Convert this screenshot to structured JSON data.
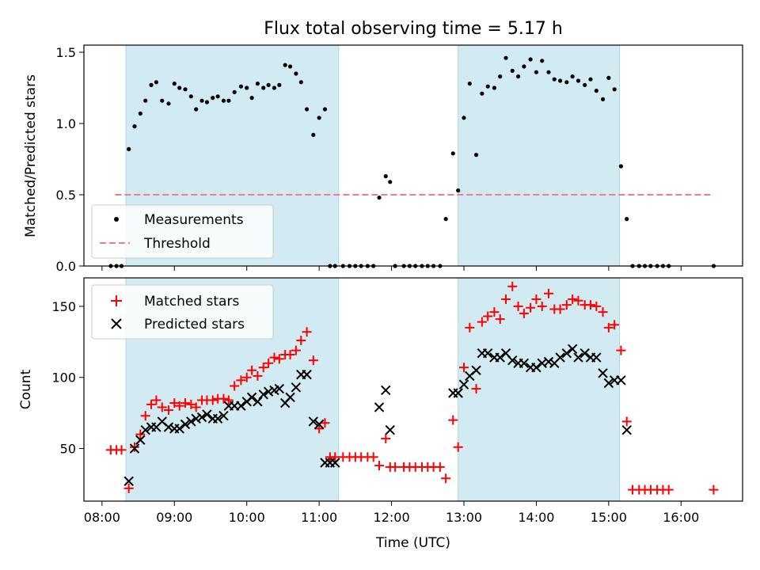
{
  "chart_data": [
    {
      "type": "scatter",
      "title": "Flux total observing time = 5.17 h",
      "xlabel": "",
      "ylabel": "Matched/Predicted stars",
      "ylim": [
        0,
        1.55
      ],
      "yticks": [
        0.0,
        0.5,
        1.0,
        1.5
      ],
      "ytick_labels": [
        "0.0",
        "0.5",
        "1.0",
        "1.5"
      ],
      "legend_position": "lower-left",
      "legend": [
        "Measurements",
        "Threshold"
      ],
      "threshold": {
        "value": 0.5,
        "x_start": 8.18,
        "x_end": 16.45,
        "color": "#f08080"
      },
      "shaded_periods": [
        [
          8.33,
          11.27
        ],
        [
          12.92,
          15.15
        ]
      ],
      "shade_color": "#add8e6",
      "series": [
        {
          "name": "Measurements",
          "color": "#000000",
          "x": [
            8.12,
            8.2,
            8.27,
            8.37,
            8.45,
            8.53,
            8.6,
            8.68,
            8.75,
            8.83,
            8.92,
            9.0,
            9.07,
            9.15,
            9.23,
            9.3,
            9.38,
            9.45,
            9.53,
            9.6,
            9.68,
            9.75,
            9.83,
            9.92,
            10.0,
            10.07,
            10.15,
            10.23,
            10.3,
            10.38,
            10.45,
            10.53,
            10.6,
            10.68,
            10.75,
            10.83,
            10.92,
            11.0,
            11.08,
            11.15,
            11.22,
            11.33,
            11.42,
            11.5,
            11.58,
            11.67,
            11.75,
            11.83,
            11.92,
            11.98,
            12.05,
            12.17,
            12.25,
            12.33,
            12.42,
            12.5,
            12.58,
            12.67,
            12.75,
            12.85,
            12.92,
            13.0,
            13.08,
            13.17,
            13.25,
            13.33,
            13.42,
            13.5,
            13.58,
            13.67,
            13.75,
            13.83,
            13.92,
            14.0,
            14.08,
            14.17,
            14.25,
            14.33,
            14.42,
            14.5,
            14.58,
            14.67,
            14.75,
            14.83,
            14.92,
            15.0,
            15.08,
            15.17,
            15.25,
            15.33,
            15.42,
            15.5,
            15.58,
            15.67,
            15.75,
            15.83,
            16.45
          ],
          "values": [
            0,
            0,
            0,
            0.82,
            0.98,
            1.07,
            1.16,
            1.27,
            1.29,
            1.16,
            1.14,
            1.28,
            1.25,
            1.24,
            1.19,
            1.1,
            1.16,
            1.15,
            1.18,
            1.19,
            1.16,
            1.16,
            1.22,
            1.26,
            1.25,
            1.18,
            1.28,
            1.25,
            1.27,
            1.25,
            1.27,
            1.41,
            1.4,
            1.35,
            1.29,
            1.1,
            0.92,
            1.04,
            1.1,
            0,
            0,
            0,
            0,
            0,
            0,
            0,
            0,
            0.48,
            0.63,
            0.59,
            0,
            0,
            0,
            0,
            0,
            0,
            0,
            0,
            0.33,
            0.79,
            0.53,
            1.04,
            1.28,
            0.78,
            1.21,
            1.26,
            1.25,
            1.33,
            1.46,
            1.37,
            1.33,
            1.4,
            1.45,
            1.36,
            1.44,
            1.36,
            1.31,
            1.3,
            1.29,
            1.33,
            1.3,
            1.27,
            1.31,
            1.23,
            1.17,
            1.32,
            1.24,
            0.7,
            0.33,
            0,
            0,
            0,
            0,
            0,
            0,
            0,
            0
          ]
        }
      ]
    },
    {
      "type": "scatter",
      "title": "",
      "xlabel": "Time (UTC)",
      "ylabel": "Count",
      "ylim": [
        13,
        170
      ],
      "yticks": [
        50,
        100,
        150
      ],
      "ytick_labels": [
        "50",
        "100",
        "150"
      ],
      "xlim": [
        7.75,
        16.85
      ],
      "xticks": [
        8,
        9,
        10,
        11,
        12,
        13,
        14,
        15,
        16
      ],
      "xtick_labels": [
        "08:00",
        "09:00",
        "10:00",
        "11:00",
        "12:00",
        "13:00",
        "14:00",
        "15:00",
        "16:00"
      ],
      "legend_position": "upper-left",
      "legend": [
        "Matched stars",
        "Predicted stars"
      ],
      "series": [
        {
          "name": "Matched stars",
          "color": "#ff0000",
          "marker": "+",
          "x": [
            8.12,
            8.2,
            8.27,
            8.37,
            8.45,
            8.53,
            8.6,
            8.68,
            8.75,
            8.83,
            8.92,
            9.0,
            9.07,
            9.15,
            9.23,
            9.3,
            9.38,
            9.45,
            9.53,
            9.6,
            9.68,
            9.75,
            9.83,
            9.92,
            10.0,
            10.07,
            10.15,
            10.23,
            10.3,
            10.38,
            10.45,
            10.53,
            10.6,
            10.68,
            10.75,
            10.83,
            10.92,
            11.0,
            11.08,
            11.15,
            11.22,
            11.33,
            11.42,
            11.5,
            11.58,
            11.67,
            11.75,
            11.83,
            11.92,
            11.98,
            12.05,
            12.17,
            12.25,
            12.33,
            12.42,
            12.5,
            12.58,
            12.67,
            12.75,
            12.85,
            12.92,
            13.0,
            13.08,
            13.17,
            13.25,
            13.33,
            13.42,
            13.5,
            13.58,
            13.67,
            13.75,
            13.83,
            13.92,
            14.0,
            14.08,
            14.17,
            14.25,
            14.33,
            14.42,
            14.5,
            14.58,
            14.67,
            14.75,
            14.83,
            14.92,
            15.0,
            15.08,
            15.17,
            15.25,
            15.33,
            15.42,
            15.5,
            15.58,
            15.67,
            15.75,
            15.83,
            16.45
          ],
          "values": [
            49,
            49,
            49,
            22,
            51,
            60,
            73,
            81,
            84,
            79,
            77,
            82,
            80,
            82,
            81,
            79,
            84,
            84,
            84,
            85,
            85,
            84,
            94,
            98,
            100,
            105,
            101,
            107,
            110,
            114,
            113,
            116,
            116,
            119,
            126,
            132,
            112,
            64,
            68,
            44,
            44,
            44,
            44,
            44,
            44,
            44,
            44,
            38,
            57,
            37,
            37,
            37,
            37,
            37,
            37,
            37,
            37,
            37,
            29,
            70,
            51,
            107,
            135,
            92,
            139,
            143,
            146,
            141,
            155,
            164,
            150,
            145,
            149,
            155,
            150,
            159,
            148,
            148,
            151,
            155,
            154,
            151,
            151,
            150,
            146,
            135,
            137,
            119,
            69,
            21,
            21,
            21,
            21,
            21,
            21,
            21,
            21
          ]
        },
        {
          "name": "Predicted stars",
          "color": "#000000",
          "marker": "x",
          "x": [
            8.37,
            8.45,
            8.53,
            8.6,
            8.68,
            8.75,
            8.83,
            8.92,
            9.0,
            9.07,
            9.15,
            9.23,
            9.3,
            9.38,
            9.45,
            9.53,
            9.6,
            9.68,
            9.75,
            9.83,
            9.92,
            10.0,
            10.07,
            10.15,
            10.23,
            10.3,
            10.38,
            10.45,
            10.53,
            10.6,
            10.68,
            10.75,
            10.83,
            10.92,
            11.0,
            11.08,
            11.15,
            11.22,
            11.83,
            11.92,
            11.98,
            12.85,
            12.92,
            13.0,
            13.08,
            13.17,
            13.25,
            13.33,
            13.42,
            13.5,
            13.58,
            13.67,
            13.75,
            13.83,
            13.92,
            14.0,
            14.08,
            14.17,
            14.25,
            14.33,
            14.42,
            14.5,
            14.58,
            14.67,
            14.75,
            14.83,
            14.92,
            15.0,
            15.08,
            15.17,
            15.25
          ],
          "values": [
            27,
            50,
            56,
            63,
            65,
            65,
            69,
            65,
            64,
            64,
            67,
            69,
            71,
            72,
            74,
            71,
            71,
            73,
            80,
            80,
            80,
            83,
            86,
            83,
            88,
            90,
            91,
            92,
            82,
            86,
            93,
            102,
            102,
            69,
            67,
            40,
            40,
            40,
            79,
            91,
            63,
            89,
            89,
            95,
            101,
            105,
            117,
            117,
            114,
            114,
            117,
            112,
            110,
            110,
            107,
            107,
            110,
            111,
            110,
            114,
            117,
            120,
            114,
            117,
            114,
            114,
            103,
            96,
            98,
            98,
            63
          ]
        }
      ]
    }
  ]
}
